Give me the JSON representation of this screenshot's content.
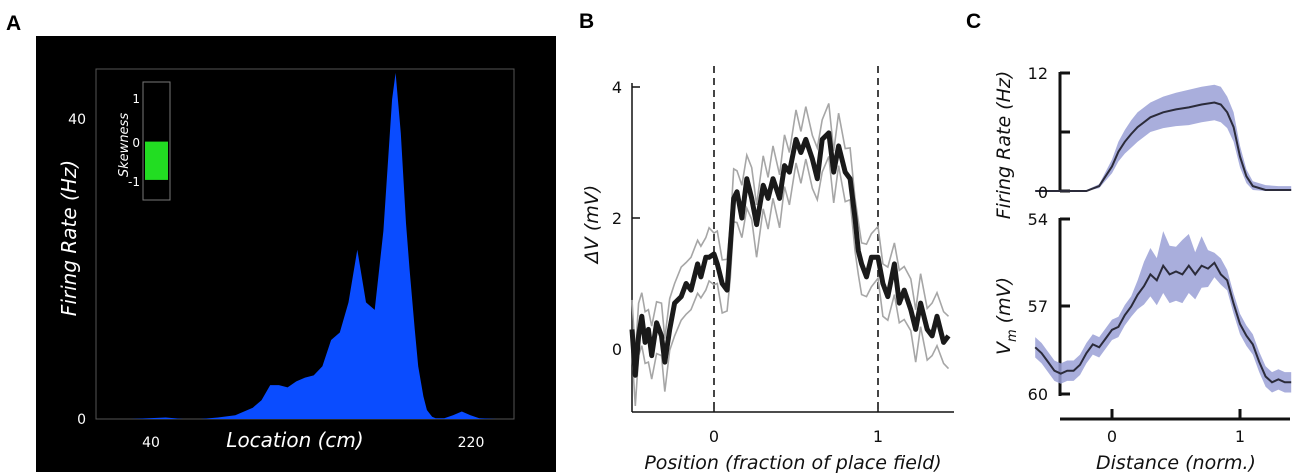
{
  "panels": {
    "a": {
      "letter": "A",
      "xlabel": "Location (cm)",
      "ylabel": "Firing Rate (Hz)",
      "x_ticks": [
        "40",
        "220"
      ],
      "y_ticks": [
        "40",
        "0"
      ],
      "inset": {
        "title": "Skewness",
        "ticks": [
          "1",
          "0",
          "-1"
        ]
      }
    },
    "b": {
      "letter": "B",
      "xlabel": "Position (fraction of place field)",
      "ylabel": "ΔV (mV)",
      "x_ticks": [
        "0",
        "1"
      ],
      "y_ticks": [
        "4",
        "2",
        "0"
      ]
    },
    "c": {
      "letter": "C",
      "xlabel": "Distance (norm.)",
      "top_ylabel": "Firing Rate (Hz)",
      "bottom_ylabel_main": "V",
      "bottom_ylabel_sub": "m",
      "bottom_ylabel_unit": "(mV)",
      "top_y_ticks": [
        "12",
        "0"
      ],
      "bottom_y_ticks": [
        "54",
        "57",
        "60"
      ],
      "x_ticks": [
        "0",
        "1"
      ]
    }
  },
  "chart_data": [
    {
      "panel": "A",
      "type": "area",
      "xlabel": "Location (cm)",
      "ylabel": "Firing Rate (Hz)",
      "xlim": [
        10,
        250
      ],
      "ylim": [
        0,
        52
      ],
      "colors": {
        "background": "#000000",
        "fill": "#0a4cff"
      },
      "x": [
        10,
        20,
        30,
        40,
        50,
        55,
        60,
        70,
        80,
        90,
        100,
        105,
        110,
        115,
        120,
        125,
        130,
        135,
        140,
        145,
        150,
        155,
        160,
        165,
        170,
        175,
        180,
        182,
        185,
        188,
        190,
        193,
        195,
        198,
        200,
        203,
        205,
        210,
        215,
        220,
        225,
        230,
        240,
        250
      ],
      "values": [
        0,
        0,
        0,
        0.1,
        0.2,
        0.1,
        0,
        0,
        0.2,
        0.5,
        1.5,
        2.5,
        4.5,
        4.5,
        4.2,
        5,
        5.5,
        5.8,
        7,
        10.5,
        11.5,
        15.5,
        22.5,
        15.5,
        14.5,
        25,
        42.5,
        46,
        38,
        26,
        20,
        12,
        7,
        3,
        1.2,
        0.3,
        0.1,
        0.1,
        0.5,
        1,
        0.5,
        0.1,
        0,
        0
      ],
      "inset": {
        "type": "bar",
        "title": "Skewness",
        "ylim": [
          -1.3,
          1.3
        ],
        "values": [
          -0.95
        ],
        "value_top": -0.05,
        "color": "#22dd22"
      }
    },
    {
      "panel": "B",
      "type": "line",
      "xlabel": "Position (fraction of place field)",
      "ylabel": "ΔV (mV)",
      "xlim": [
        -0.5,
        1.45
      ],
      "ylim": [
        -1.0,
        4.0
      ],
      "vlines": [
        0,
        1
      ],
      "x": [
        -0.5,
        -0.48,
        -0.46,
        -0.44,
        -0.42,
        -0.4,
        -0.38,
        -0.35,
        -0.32,
        -0.3,
        -0.27,
        -0.24,
        -0.2,
        -0.17,
        -0.14,
        -0.1,
        -0.08,
        -0.05,
        -0.03,
        0,
        0.02,
        0.05,
        0.08,
        0.1,
        0.12,
        0.14,
        0.17,
        0.2,
        0.23,
        0.26,
        0.3,
        0.33,
        0.36,
        0.4,
        0.43,
        0.46,
        0.5,
        0.53,
        0.56,
        0.6,
        0.63,
        0.66,
        0.7,
        0.73,
        0.76,
        0.8,
        0.83,
        0.86,
        0.88,
        0.9,
        0.93,
        0.96,
        1.0,
        1.03,
        1.06,
        1.1,
        1.13,
        1.16,
        1.2,
        1.23,
        1.26,
        1.3,
        1.33,
        1.36,
        1.4,
        1.43
      ],
      "series": [
        {
          "values": [
            0.3,
            -0.4,
            0.2,
            0.5,
            0.1,
            0.3,
            -0.1,
            0.4,
            0.2,
            -0.2,
            0.3,
            0.7,
            0.8,
            1.0,
            0.9,
            1.3,
            1.1,
            1.4,
            1.4,
            1.45,
            1.3,
            1.0,
            0.9,
            1.6,
            2.3,
            2.4,
            2.0,
            2.6,
            2.3,
            1.9,
            2.5,
            2.3,
            2.6,
            2.3,
            2.8,
            2.7,
            3.2,
            3.0,
            3.2,
            2.9,
            2.6,
            3.2,
            3.3,
            2.7,
            3.1,
            2.7,
            2.6,
            2.0,
            1.5,
            1.3,
            1.1,
            1.4,
            1.4,
            1.0,
            0.8,
            1.3,
            0.7,
            0.9,
            0.6,
            0.3,
            0.7,
            0.3,
            0.2,
            0.5,
            0.1,
            0.2
          ]
        }
      ],
      "band_halfwidth": 0.4,
      "colors": {
        "mean": "#1a1a1a",
        "band": "#a6a6a6"
      }
    },
    {
      "panel": "C-top",
      "type": "line",
      "ylabel": "Firing Rate (Hz)",
      "xlim": [
        -0.6,
        1.4
      ],
      "ylim": [
        0,
        12
      ],
      "y_ticks_minor": [
        6
      ],
      "x": [
        -0.6,
        -0.4,
        -0.2,
        -0.1,
        0,
        0.05,
        0.1,
        0.15,
        0.2,
        0.3,
        0.4,
        0.5,
        0.6,
        0.7,
        0.8,
        0.85,
        0.9,
        0.95,
        1.0,
        1.05,
        1.1,
        1.2,
        1.3,
        1.4
      ],
      "values": [
        0,
        0,
        0,
        0.5,
        2.5,
        4.0,
        5.0,
        5.8,
        6.5,
        7.5,
        8.0,
        8.3,
        8.5,
        8.8,
        9.0,
        8.8,
        8.0,
        6.5,
        3.5,
        1.5,
        0.5,
        0.1,
        0.1,
        0.1
      ],
      "band_upper": [
        0.1,
        0.1,
        0.1,
        0.7,
        3.2,
        5.0,
        6.2,
        7.2,
        8.0,
        9.0,
        9.6,
        10.0,
        10.3,
        10.6,
        10.8,
        10.6,
        9.6,
        8.0,
        4.6,
        2.2,
        1.0,
        0.6,
        0.5,
        0.5
      ],
      "band_lower": [
        0,
        0,
        0,
        0.3,
        1.8,
        3.0,
        3.8,
        4.4,
        5.0,
        6.0,
        6.4,
        6.6,
        6.7,
        7.0,
        7.2,
        7.0,
        6.4,
        5.0,
        2.4,
        0.8,
        0.1,
        0,
        0,
        0
      ],
      "colors": {
        "line": "#2b2b3a",
        "band": "#9aa0d6"
      }
    },
    {
      "panel": "C-bottom",
      "type": "line",
      "xlabel": "Distance (norm.)",
      "ylabel": "Vm (mV)",
      "xlim": [
        -0.6,
        1.4
      ],
      "ylim": [
        60.2,
        53.8
      ],
      "x": [
        -0.6,
        -0.55,
        -0.5,
        -0.45,
        -0.4,
        -0.35,
        -0.3,
        -0.25,
        -0.2,
        -0.15,
        -0.1,
        -0.05,
        0,
        0.05,
        0.1,
        0.15,
        0.2,
        0.25,
        0.3,
        0.35,
        0.4,
        0.45,
        0.5,
        0.55,
        0.6,
        0.65,
        0.7,
        0.75,
        0.8,
        0.85,
        0.9,
        0.95,
        1.0,
        1.05,
        1.1,
        1.15,
        1.2,
        1.25,
        1.3,
        1.35,
        1.4
      ],
      "values": [
        58.4,
        58.6,
        58.9,
        59.2,
        59.3,
        59.2,
        59.2,
        59.0,
        58.6,
        58.3,
        58.4,
        58.1,
        57.8,
        57.7,
        57.3,
        57.0,
        56.6,
        56.3,
        55.9,
        56.1,
        55.6,
        55.9,
        55.8,
        55.9,
        55.6,
        55.9,
        55.6,
        55.7,
        55.5,
        55.9,
        56.1,
        56.9,
        57.6,
        58.0,
        58.3,
        58.9,
        59.4,
        59.6,
        59.5,
        59.6,
        59.6
      ],
      "band_halfwidth": 0.35,
      "band_halfwidth_peak": 1.0,
      "colors": {
        "line": "#2b2b3a",
        "band": "#9aa0d6"
      }
    }
  ]
}
